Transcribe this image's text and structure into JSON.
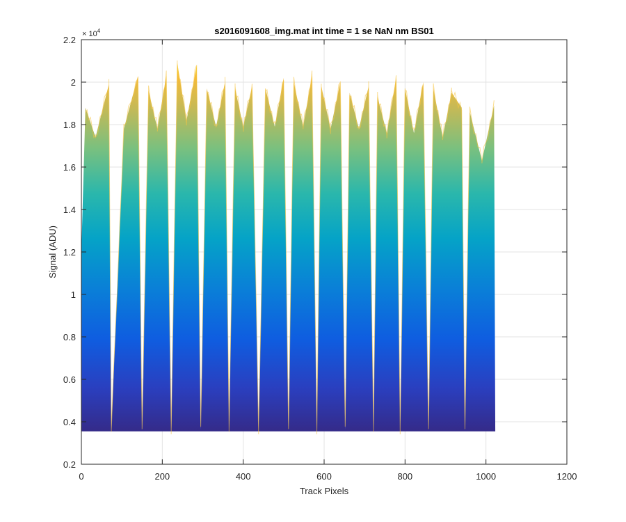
{
  "chart_data": {
    "type": "area",
    "title": "s2016091608_img.mat int time = 1 se  NaN nm BS01",
    "xlabel": "Track Pixels",
    "ylabel": "Signal (ADU)",
    "xlim": [
      0,
      1200
    ],
    "ylim": [
      2000,
      22000
    ],
    "x_ticks": [
      0,
      200,
      400,
      600,
      800,
      1000,
      1200
    ],
    "x_tick_labels": [
      "0",
      "200",
      "400",
      "600",
      "800",
      "1000",
      "1200"
    ],
    "y_ticks": [
      2000,
      4000,
      6000,
      8000,
      10000,
      12000,
      14000,
      16000,
      18000,
      20000,
      22000
    ],
    "y_tick_labels": [
      "0.2",
      "0.4",
      "0.6",
      "0.8",
      "1",
      "1.2",
      "1.4",
      "1.6",
      "1.8",
      "2",
      "2.2"
    ],
    "y_exponent_label": "× 10",
    "y_exponent_power": "4",
    "grid": true,
    "baseline": 3550,
    "x_range": [
      0,
      1023
    ],
    "peaks": [
      {
        "x": 10,
        "y": 18800
      },
      {
        "x": 68,
        "y": 19900
      },
      {
        "x": 140,
        "y": 20300
      },
      {
        "x": 166,
        "y": 19600
      },
      {
        "x": 210,
        "y": 20300
      },
      {
        "x": 237,
        "y": 20900
      },
      {
        "x": 285,
        "y": 20800
      },
      {
        "x": 310,
        "y": 19700
      },
      {
        "x": 355,
        "y": 20000
      },
      {
        "x": 380,
        "y": 19700
      },
      {
        "x": 422,
        "y": 19800
      },
      {
        "x": 455,
        "y": 19700
      },
      {
        "x": 500,
        "y": 20200
      },
      {
        "x": 525,
        "y": 20000
      },
      {
        "x": 570,
        "y": 20300
      },
      {
        "x": 593,
        "y": 19800
      },
      {
        "x": 640,
        "y": 20000
      },
      {
        "x": 663,
        "y": 19500
      },
      {
        "x": 710,
        "y": 19800
      },
      {
        "x": 732,
        "y": 19300
      },
      {
        "x": 778,
        "y": 20200
      },
      {
        "x": 800,
        "y": 19700
      },
      {
        "x": 845,
        "y": 20000
      },
      {
        "x": 870,
        "y": 19700
      },
      {
        "x": 915,
        "y": 19500
      },
      {
        "x": 940,
        "y": 18800
      },
      {
        "x": 960,
        "y": 18600
      },
      {
        "x": 1020,
        "y": 18900
      }
    ],
    "troughs": [
      {
        "x": 35,
        "y": 17400
      },
      {
        "x": 74,
        "y": 3650
      },
      {
        "x": 105,
        "y": 17800
      },
      {
        "x": 150,
        "y": 3650
      },
      {
        "x": 188,
        "y": 17800
      },
      {
        "x": 222,
        "y": 3650
      },
      {
        "x": 260,
        "y": 18200
      },
      {
        "x": 295,
        "y": 3650
      },
      {
        "x": 333,
        "y": 17900
      },
      {
        "x": 365,
        "y": 3650
      },
      {
        "x": 400,
        "y": 17900
      },
      {
        "x": 438,
        "y": 3650
      },
      {
        "x": 478,
        "y": 17900
      },
      {
        "x": 512,
        "y": 3650
      },
      {
        "x": 548,
        "y": 17900
      },
      {
        "x": 582,
        "y": 3650
      },
      {
        "x": 616,
        "y": 17800
      },
      {
        "x": 652,
        "y": 3650
      },
      {
        "x": 686,
        "y": 17800
      },
      {
        "x": 722,
        "y": 3650
      },
      {
        "x": 755,
        "y": 17600
      },
      {
        "x": 788,
        "y": 3650
      },
      {
        "x": 822,
        "y": 17600
      },
      {
        "x": 858,
        "y": 3650
      },
      {
        "x": 893,
        "y": 17400
      },
      {
        "x": 948,
        "y": 3650
      },
      {
        "x": 990,
        "y": 16300
      }
    ]
  }
}
